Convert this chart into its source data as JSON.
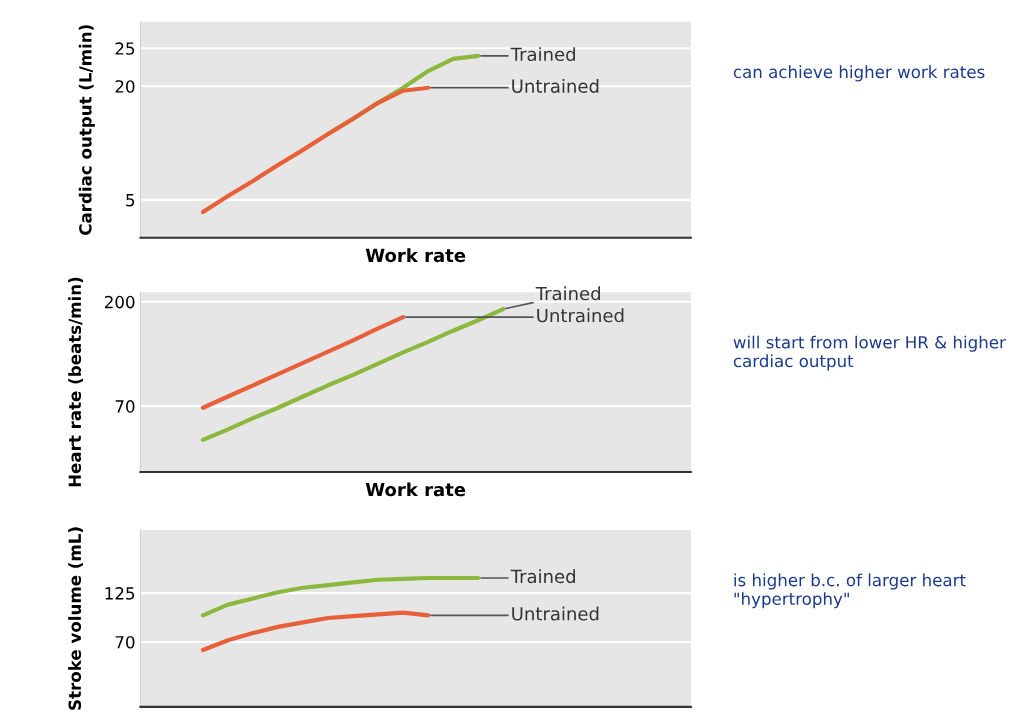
{
  "chart_data": [
    {
      "type": "line",
      "ylabel": "Cardiac output (L/min)",
      "xlabel": "Work rate",
      "grid": "y",
      "ylim": [
        0,
        28.5
      ],
      "yticks": [
        5,
        20,
        25
      ],
      "categories": [
        null,
        null,
        null,
        null,
        null,
        null,
        null,
        null,
        null,
        null,
        null,
        null,
        null,
        null,
        null,
        null,
        null,
        null,
        null,
        null,
        null,
        null
      ],
      "series": [
        {
          "name": "Trained",
          "color": "#8db83e",
          "values": [
            null,
            null,
            null,
            null,
            null,
            null,
            null,
            13.7,
            15.7,
            17.8,
            19.8,
            22,
            23.6,
            24,
            null,
            null,
            null,
            null,
            null,
            null,
            null,
            null
          ]
        },
        {
          "name": "Untrained",
          "color": "#e8603a",
          "values": [
            null,
            null,
            3.4,
            5.5,
            7.5,
            9.6,
            11.6,
            13.7,
            15.7,
            17.8,
            19.4,
            19.8,
            null,
            null,
            null,
            null,
            null,
            null,
            null,
            null,
            null,
            null
          ]
        }
      ],
      "annotations": [
        "can achieve higher work rates"
      ]
    },
    {
      "type": "line",
      "ylabel": "Heart rate (beats/min)",
      "xlabel": "Work rate",
      "grid": "y",
      "ylim": [
        -12,
        212
      ],
      "yticks": [
        70,
        200
      ],
      "categories": [
        null,
        null,
        null,
        null,
        null,
        null,
        null,
        null,
        null,
        null,
        null,
        null,
        null,
        null,
        null,
        null,
        null,
        null,
        null,
        null,
        null,
        null
      ],
      "series": [
        {
          "name": "Untrained",
          "color": "#e8603a",
          "values": [
            null,
            null,
            68,
            82,
            96,
            110,
            124,
            138,
            152,
            167,
            181,
            null,
            null,
            null,
            null,
            null,
            null,
            null,
            null,
            null,
            null,
            null
          ]
        },
        {
          "name": "Trained",
          "color": "#8db83e",
          "values": [
            null,
            null,
            28,
            41,
            55,
            68,
            82,
            96,
            109,
            123,
            137,
            150,
            164,
            177,
            191,
            null,
            null,
            null,
            null,
            null,
            null,
            null
          ]
        }
      ],
      "annotations": [
        "will start from lower HR & higher cardiac output"
      ]
    },
    {
      "type": "line",
      "ylabel": "Stroke volume (mL)",
      "grid": "y",
      "ylim": [
        -3,
        196
      ],
      "yticks": [
        70,
        125
      ],
      "categories": [
        null,
        null,
        null,
        null,
        null,
        null,
        null,
        null,
        null,
        null,
        null,
        null,
        null,
        null,
        null,
        null,
        null,
        null,
        null,
        null,
        null,
        null
      ],
      "series": [
        {
          "name": "Trained",
          "color": "#8db83e",
          "values": [
            null,
            null,
            100,
            112,
            119,
            126,
            131,
            134,
            137,
            140,
            141,
            142,
            142,
            142,
            null,
            null,
            null,
            null,
            null,
            null,
            null,
            null
          ]
        },
        {
          "name": "Untrained",
          "color": "#e8603a",
          "values": [
            null,
            null,
            61,
            72,
            80,
            87,
            92,
            97,
            99,
            101,
            103,
            100,
            null,
            null,
            null,
            null,
            null,
            null,
            null,
            null,
            null,
            null
          ]
        }
      ],
      "annotations": [
        "is higher b.c. of larger heart \"hypertrophy\""
      ]
    }
  ]
}
